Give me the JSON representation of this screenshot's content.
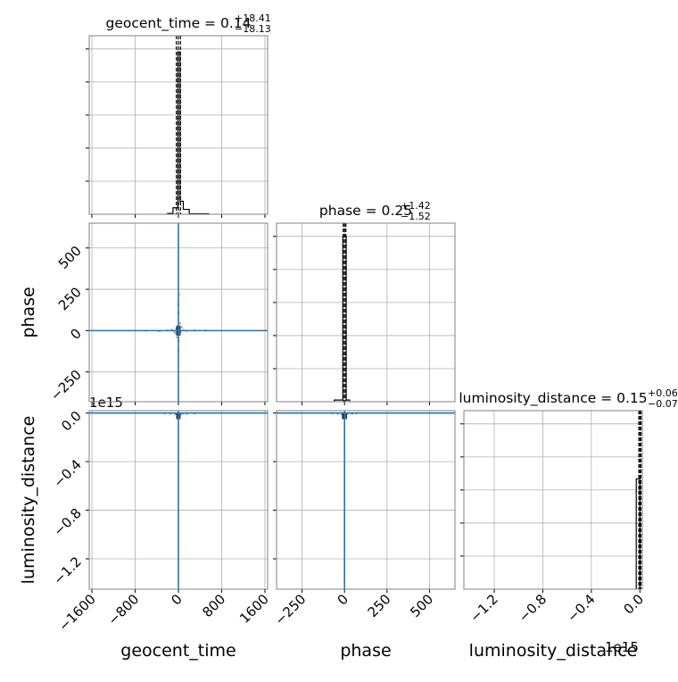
{
  "colors": {
    "frame": "#808080",
    "grid": "#b0b0b0",
    "hist": "#000000",
    "truth": "#1f77b4",
    "scatter": "#9a9a9a",
    "density": "#1f77b4"
  },
  "titles": {
    "geocent_time": {
      "name": "geocent_time",
      "value": "0.14",
      "upper": "+18.41",
      "lower": "−18.13"
    },
    "phase": {
      "name": "phase",
      "value": "0.25",
      "upper": "+1.42",
      "lower": "−1.52"
    },
    "luminosity_distance": {
      "name": "luminosity_distance",
      "value": "0.15",
      "upper": "+0.06",
      "lower": "−0.07"
    }
  },
  "axis_labels": {
    "geocent_time": "geocent_time",
    "phase": "phase",
    "luminosity_distance": "luminosity_distance"
  },
  "offset_labels": {
    "ld_row": "1e15",
    "ld_col": "1e15"
  },
  "chart_data": [
    {
      "type": "histogram",
      "panel": "geocent_time-marginal",
      "title": "geocent_time = 0.14 +18.41 −18.13",
      "xlim": [
        -1650,
        1650
      ],
      "bin_edges": [
        -200,
        -100,
        -10,
        10,
        30,
        90,
        200,
        560
      ],
      "counts": [
        0.5,
        4,
        100,
        100,
        8,
        3,
        0.3
      ],
      "quantile_lines": [
        -18,
        0.14,
        18.5
      ],
      "x_ticks": [
        -1600,
        -800,
        0,
        800,
        1600
      ],
      "ymax": 110,
      "grid": true
    },
    {
      "type": "histogram",
      "panel": "phase-marginal",
      "title": "phase = 0.25 +1.42 −1.52",
      "xlim": [
        -400,
        650
      ],
      "bin_edges": [
        -60,
        -10,
        10,
        30
      ],
      "counts": [
        1,
        100,
        1
      ],
      "quantile_lines": [
        -1.3,
        0.25,
        1.7
      ],
      "x_ticks": [
        -250,
        0,
        250,
        500
      ],
      "ymax": 108,
      "grid": true
    },
    {
      "type": "histogram",
      "panel": "luminosity_distance-marginal",
      "title": "luminosity_distance = 0.15 +0.06 −0.07",
      "xlim": [
        -1.45,
        0.02
      ],
      "offset": "1e15",
      "bin_edges": [
        -0.03,
        0.0
      ],
      "counts": [
        100
      ],
      "quantile_lines": [
        0.0,
        0.0,
        0.0
      ],
      "x_ticks": [
        -1.2,
        -0.8,
        -0.4,
        0.0
      ],
      "x_tick_labels": [
        "−1.2",
        "−0.8",
        "−0.4",
        "0.0"
      ],
      "ymax": 162,
      "grid": true
    },
    {
      "type": "scatter",
      "panel": "geocent_time-vs-phase",
      "xlabel": "geocent_time",
      "ylabel": "phase",
      "xlim": [
        -1650,
        1650
      ],
      "ylim": [
        -430,
        650
      ],
      "truth": {
        "x": 0,
        "y": 0
      },
      "x_ticks": [
        -1600,
        -800,
        0,
        800,
        1600
      ],
      "y_ticks": [
        -250,
        0,
        250,
        500
      ],
      "y_tick_labels": [
        "−250",
        "0",
        "250",
        "500"
      ],
      "points": [
        [
          -120,
          5
        ],
        [
          -80,
          -4
        ],
        [
          -40,
          12
        ],
        [
          40,
          -8
        ],
        [
          90,
          3
        ],
        [
          150,
          -2
        ],
        [
          -200,
          1
        ],
        [
          0,
          110
        ],
        [
          0,
          160
        ],
        [
          0,
          -60
        ],
        [
          0,
          -120
        ],
        [
          30,
          45
        ],
        [
          -30,
          -40
        ],
        [
          60,
          20
        ],
        [
          -60,
          -15
        ],
        [
          10,
          220
        ],
        [
          300,
          2
        ],
        [
          -350,
          -3
        ],
        [
          500,
          1
        ],
        [
          -600,
          -1
        ]
      ],
      "density_box": {
        "x": [
          -40,
          40
        ],
        "y": [
          -30,
          30
        ]
      },
      "grid": true
    },
    {
      "type": "scatter",
      "panel": "geocent_time-vs-luminosity_distance",
      "xlabel": "geocent_time",
      "ylabel": "luminosity_distance",
      "offset": "1e15",
      "xlim": [
        -1650,
        1650
      ],
      "ylim": [
        -1.45,
        0.02
      ],
      "truth": {
        "x": 0,
        "y": 0
      },
      "x_ticks": [
        -1600,
        -800,
        0,
        800,
        1600
      ],
      "x_tick_labels": [
        "−1600",
        "−800",
        "0",
        "800",
        "1600"
      ],
      "y_ticks": [
        -1.2,
        -0.8,
        -0.4,
        0.0
      ],
      "y_tick_labels": [
        "−1.2",
        "−0.8",
        "−0.4",
        "0.0"
      ],
      "points": [
        [
          -150,
          -0.005
        ],
        [
          -60,
          -0.01
        ],
        [
          80,
          -0.004
        ],
        [
          160,
          -0.006
        ],
        [
          -250,
          -0.002
        ],
        [
          300,
          -0.003
        ],
        [
          0,
          -0.02
        ],
        [
          40,
          -0.012
        ]
      ],
      "density_box": {
        "x": [
          -40,
          40
        ],
        "y": [
          -0.05,
          0.0
        ]
      },
      "grid": true
    },
    {
      "type": "scatter",
      "panel": "phase-vs-luminosity_distance",
      "xlabel": "phase",
      "ylabel": "luminosity_distance",
      "xlim": [
        -400,
        650
      ],
      "ylim": [
        -1.45,
        0.02
      ],
      "truth": {
        "x": 0,
        "y": 0
      },
      "x_ticks": [
        -250,
        0,
        250,
        500
      ],
      "x_tick_labels": [
        "−250",
        "0",
        "250",
        "500"
      ],
      "y_ticks": [
        -1.2,
        -0.8,
        -0.4,
        0.0
      ],
      "points": [
        [
          -40,
          -0.005
        ],
        [
          -15,
          -0.01
        ],
        [
          20,
          -0.004
        ],
        [
          45,
          -0.006
        ],
        [
          70,
          -0.003
        ],
        [
          -70,
          -0.002
        ],
        [
          5,
          -0.02
        ]
      ],
      "density_box": {
        "x": [
          -15,
          15
        ],
        "y": [
          -0.05,
          0.0
        ]
      },
      "grid": true
    }
  ]
}
